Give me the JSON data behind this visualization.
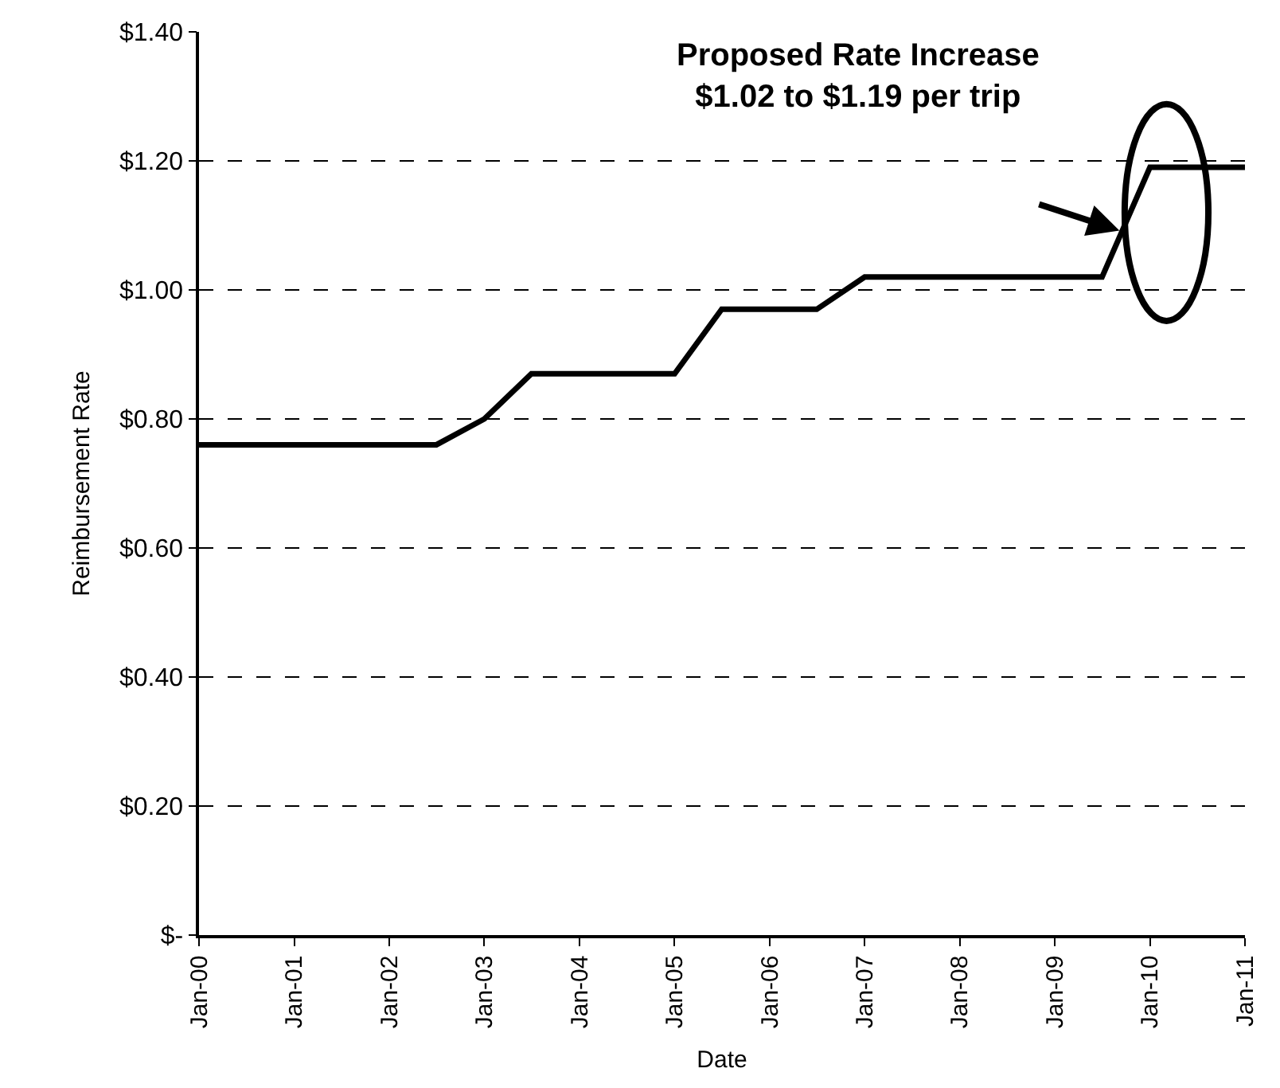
{
  "chart_data": {
    "type": "line",
    "xlabel": "Date",
    "ylabel": "Reimbursement Rate",
    "annotations": [
      "Proposed Rate Increase\n$1.02 to $1.19 per trip"
    ],
    "x": [
      "2000-01",
      "2002-07",
      "2003-01",
      "2003-07",
      "2005-01",
      "2005-07",
      "2006-07",
      "2007-01",
      "2009-07",
      "2010-01",
      "2011-01"
    ],
    "series": [
      {
        "color": "#000000",
        "values": [
          0.76,
          0.76,
          0.8,
          0.87,
          0.87,
          0.97,
          0.97,
          1.02,
          1.02,
          1.19,
          1.19
        ]
      }
    ],
    "xlim": [
      "2000-01",
      "2011-01"
    ],
    "xticks": [
      {
        "value": "2000-01",
        "label": "Jan-00"
      },
      {
        "value": "2001-01",
        "label": "Jan-01"
      },
      {
        "value": "2002-01",
        "label": "Jan-02"
      },
      {
        "value": "2003-01",
        "label": "Jan-03"
      },
      {
        "value": "2004-01",
        "label": "Jan-04"
      },
      {
        "value": "2005-01",
        "label": "Jan-05"
      },
      {
        "value": "2006-01",
        "label": "Jan-06"
      },
      {
        "value": "2007-01",
        "label": "Jan-07"
      },
      {
        "value": "2008-01",
        "label": "Jan-08"
      },
      {
        "value": "2009-01",
        "label": "Jan-09"
      },
      {
        "value": "2010-01",
        "label": "Jan-10"
      },
      {
        "value": "2011-01",
        "label": "Jan-11"
      }
    ],
    "ylim": [
      0,
      1.4
    ],
    "yticks": [
      {
        "value": 0,
        "label": "$-"
      },
      {
        "value": 0.2,
        "label": "$0.20"
      },
      {
        "value": 0.4,
        "label": "$0.40"
      },
      {
        "value": 0.6,
        "label": "$0.60"
      },
      {
        "value": 0.8,
        "label": "$0.80"
      },
      {
        "value": 1.0,
        "label": "$1.00"
      },
      {
        "value": 1.2,
        "label": "$1.20"
      },
      {
        "value": 1.4,
        "label": "$1.40"
      }
    ],
    "grid": "y",
    "marker": "none",
    "line_style": "solid"
  }
}
